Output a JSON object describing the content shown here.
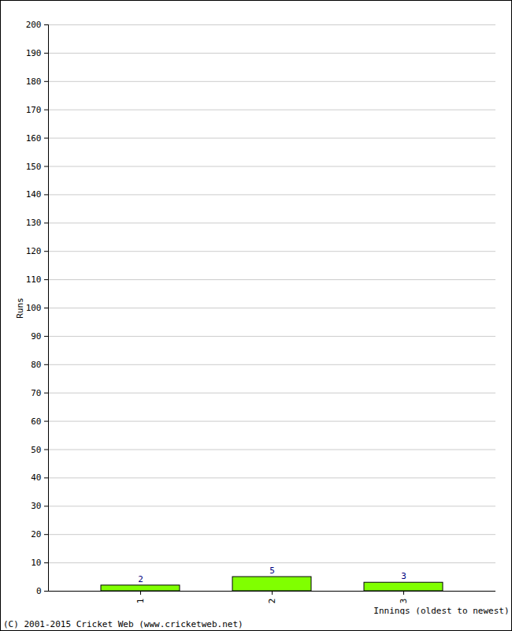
{
  "chart_data": {
    "type": "bar",
    "caption": "(C) 2001-2015 Cricket Web (www.cricketweb.net)",
    "x_label": "Innings (oldest to newest)",
    "y_label": "Runs",
    "categories": [
      "1",
      "2",
      "3"
    ],
    "values": [
      2,
      5,
      3
    ],
    "color": "#80ff00",
    "ylim": [
      0,
      200
    ],
    "yticks": [
      0,
      10,
      20,
      30,
      40,
      50,
      60,
      70,
      80,
      90,
      100,
      110,
      120,
      130,
      140,
      150,
      160,
      170,
      180,
      190,
      200
    ],
    "grid": true,
    "data_labels": true
  }
}
